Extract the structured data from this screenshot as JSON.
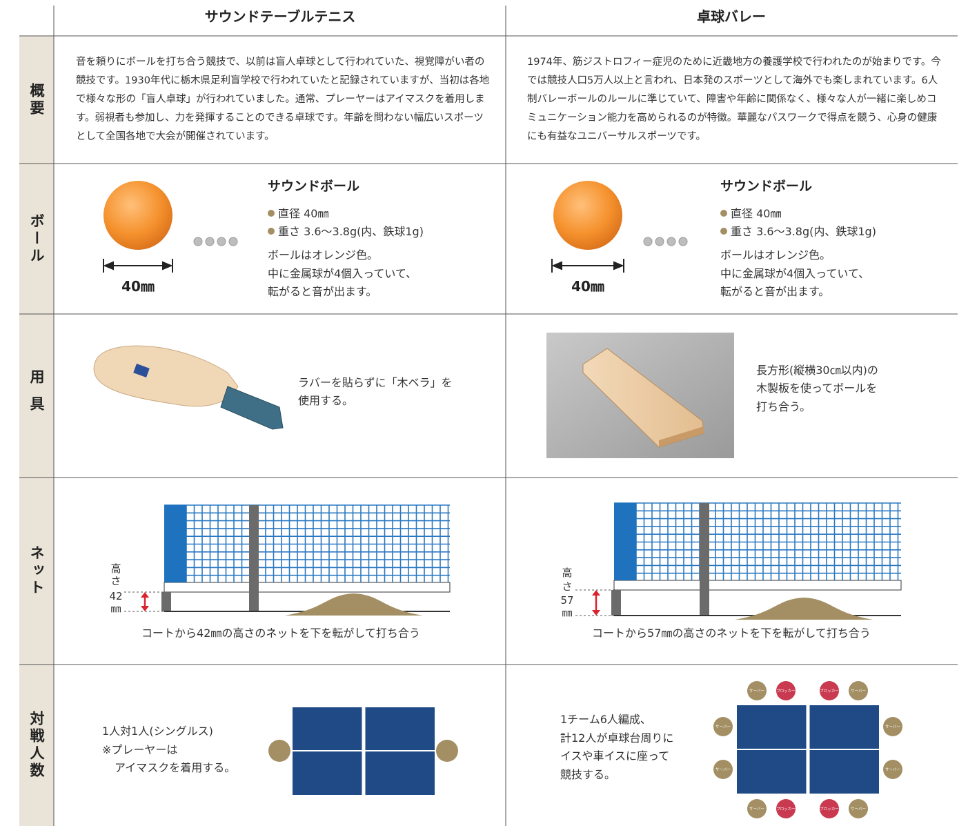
{
  "columns": [
    "サウンドテーブルテニス",
    "卓球バレー"
  ],
  "row_labels": [
    "概要",
    "ボール",
    "用具",
    "ネット",
    "対戦人数"
  ],
  "overview": [
    "音を頼りにボールを打ち合う競技で、以前は盲人卓球として行われていた、視覚障がい者の競技です。1930年代に栃木県足利盲学校で行われていたと記録されていますが、当初は各地で様々な形の「盲人卓球」が行われていました。通常、プレーヤーはアイマスクを着用します。弱視者も参加し、力を発揮することのできる卓球です。年齢を問わない幅広いスポーツとして全国各地で大会が開催されています。",
    "1974年、筋ジストロフィー症児のために近畿地方の養護学校で行われたのが始まりです。今では競技人口5万人以上と言われ、日本発のスポーツとして海外でも楽しまれています。6人制バレーボールのルールに準じていて、障害や年齢に関係なく、様々な人が一緒に楽しめコミュニケーション能力を高められるのが特徴。華麗なパスワークで得点を競う、心身の健康にも有益なユニバーサルスポーツです。"
  ],
  "ball": [
    {
      "title": "サウンドボール",
      "specs": [
        "直径 40㎜",
        "重さ 3.6〜3.8g(内、鉄球1g)"
      ],
      "description": [
        "ボールはオレンジ色。",
        "中に金属球が4個入っていて、",
        "転がると音が出ます。"
      ],
      "diameter_label": "40㎜"
    },
    {
      "title": "サウンドボール",
      "specs": [
        "直径 40㎜",
        "重さ 3.6〜3.8g(内、鉄球1g)"
      ],
      "description": [
        "ボールはオレンジ色。",
        "中に金属球が4個入っていて、",
        "転がると音が出ます。"
      ],
      "diameter_label": "40㎜"
    }
  ],
  "equipment": [
    {
      "lines": [
        "ラバーを貼らずに「木ベラ」を",
        "使用する。"
      ]
    },
    {
      "lines": [
        "長方形(縦横30㎝以内)の",
        "木製板を使ってボールを",
        "打ち合う。"
      ]
    }
  ],
  "net": [
    {
      "height_label": [
        "高",
        "さ",
        "42",
        "㎜"
      ],
      "caption": "コートから42㎜の高さのネットを下を転がして打ち合う"
    },
    {
      "height_label": [
        "高",
        "さ",
        "57",
        "㎜"
      ],
      "caption": "コートから57㎜の高さのネットを下を転がして打ち合う"
    }
  ],
  "players": [
    {
      "lines": [
        "1人対1人(シングルス)",
        "※プレーヤーは",
        "アイマスクを着用する。"
      ]
    },
    {
      "lines": [
        "1チーム6人編成、",
        "計12人が卓球台周りに",
        "イスや車イスに座って",
        "競技する。"
      ],
      "chips": [
        "サーバー",
        "ブロッカー",
        "ブロッカー",
        "サーバー",
        "サーバー",
        "サーバー",
        "サーバー",
        "サーバー",
        "サーバー",
        "ブロッカー",
        "ブロッカー",
        "サーバー"
      ]
    }
  ]
}
